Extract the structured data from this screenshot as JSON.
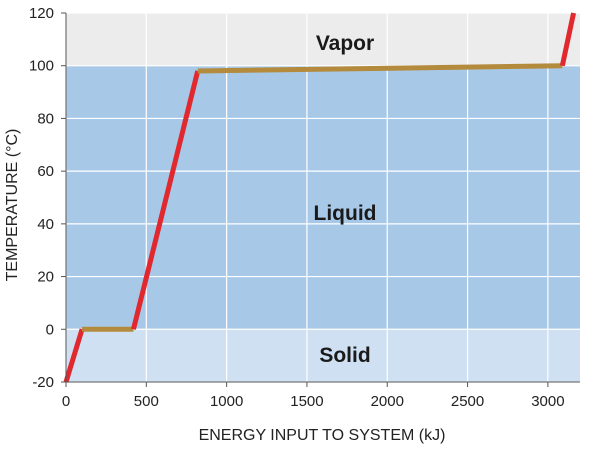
{
  "chart_data": {
    "type": "line",
    "title": "",
    "xlabel": "ENERGY INPUT TO SYSTEM (kJ)",
    "ylabel": "TEMPERATURE (°C)",
    "xlim": [
      0,
      3200
    ],
    "ylim": [
      -20,
      120
    ],
    "x_ticks": [
      0,
      500,
      1000,
      1500,
      2000,
      2500,
      3000
    ],
    "y_ticks": [
      -20,
      0,
      20,
      40,
      60,
      80,
      100,
      120
    ],
    "grid": true,
    "regions": [
      {
        "name": "Solid",
        "y_from": -20,
        "y_to": 0,
        "color": "#cfe0f3"
      },
      {
        "name": "Liquid",
        "y_from": 0,
        "y_to": 100,
        "color": "#a8c8e8"
      },
      {
        "name": "Vapor",
        "y_from": 100,
        "y_to": 120,
        "color": "#ececec"
      }
    ],
    "series": [
      {
        "segments": [
          {
            "phase": "heating",
            "color": "#e0282e",
            "points": [
              [
                0,
                -20
              ],
              [
                100,
                0
              ]
            ]
          },
          {
            "phase": "transition",
            "color": "#b48a3c",
            "points": [
              [
                100,
                0
              ],
              [
                420,
                0
              ]
            ]
          },
          {
            "phase": "heating",
            "color": "#e0282e",
            "points": [
              [
                420,
                0
              ],
              [
                820,
                98
              ]
            ]
          },
          {
            "phase": "transition",
            "color": "#b48a3c",
            "points": [
              [
                820,
                98
              ],
              [
                3090,
                100
              ]
            ]
          },
          {
            "phase": "heating",
            "color": "#e0282e",
            "points": [
              [
                3090,
                100
              ],
              [
                3160,
                120
              ]
            ]
          }
        ]
      }
    ],
    "region_labels": {
      "vapor": "Vapor",
      "liquid": "Liquid",
      "solid": "Solid"
    }
  },
  "colors": {
    "heating_line": "#e0282e",
    "transition_line": "#b48a3c",
    "grid": "#ffffff",
    "axis": "#555555"
  }
}
